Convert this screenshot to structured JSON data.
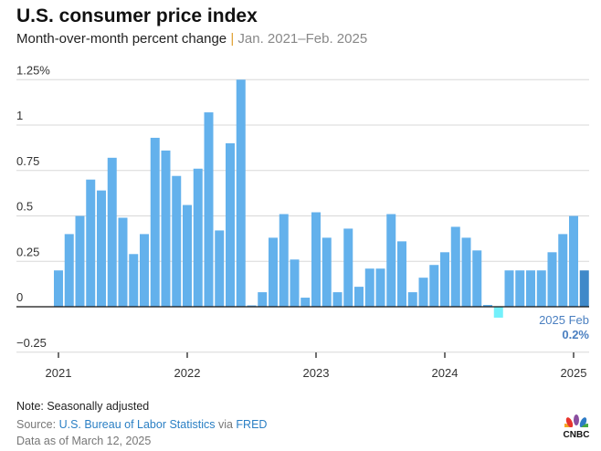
{
  "title": "U.S. consumer price index",
  "subtitle": "Month-over-month percent change",
  "subtitle_separator": "|",
  "subtitle_range": "Jan. 2021–Feb. 2025",
  "chart_data": {
    "type": "bar",
    "title": "U.S. consumer price index",
    "ylabel": "",
    "xlabel": "",
    "ylim": [
      -0.25,
      1.25
    ],
    "y_ticks": [
      -0.25,
      0,
      0.25,
      0.5,
      0.75,
      1,
      1.25
    ],
    "y_tick_labels": [
      "−0.25",
      "0",
      "0.25",
      "0.5",
      "0.75",
      "1",
      "1.25%"
    ],
    "x_tick_labels": [
      "2021",
      "2022",
      "2023",
      "2024",
      "2025"
    ],
    "grid": true,
    "start": "2021-01",
    "categories": [
      "2021-01",
      "2021-02",
      "2021-03",
      "2021-04",
      "2021-05",
      "2021-06",
      "2021-07",
      "2021-08",
      "2021-09",
      "2021-10",
      "2021-11",
      "2021-12",
      "2022-01",
      "2022-02",
      "2022-03",
      "2022-04",
      "2022-05",
      "2022-06",
      "2022-07",
      "2022-08",
      "2022-09",
      "2022-10",
      "2022-11",
      "2022-12",
      "2023-01",
      "2023-02",
      "2023-03",
      "2023-04",
      "2023-05",
      "2023-06",
      "2023-07",
      "2023-08",
      "2023-09",
      "2023-10",
      "2023-11",
      "2023-12",
      "2024-01",
      "2024-02",
      "2024-03",
      "2024-04",
      "2024-05",
      "2024-06",
      "2024-07",
      "2024-08",
      "2024-09",
      "2024-10",
      "2024-11",
      "2024-12",
      "2025-01",
      "2025-02"
    ],
    "values": [
      0.2,
      0.4,
      0.5,
      0.7,
      0.64,
      0.82,
      0.49,
      0.29,
      0.4,
      0.93,
      0.86,
      0.72,
      0.56,
      0.76,
      1.07,
      0.42,
      0.9,
      1.25,
      0.0,
      0.08,
      0.38,
      0.51,
      0.26,
      0.05,
      0.52,
      0.38,
      0.08,
      0.43,
      0.11,
      0.21,
      0.21,
      0.51,
      0.36,
      0.08,
      0.16,
      0.23,
      0.3,
      0.44,
      0.38,
      0.31,
      0.01,
      -0.06,
      0.2,
      0.2,
      0.2,
      0.2,
      0.3,
      0.4,
      0.5,
      0.2
    ],
    "colors": {
      "bar": "#63b1ec",
      "negative": "#73f0fb",
      "highlight": "#3f89c9"
    },
    "annotation": {
      "label": "2025 Feb",
      "value": "0.2%"
    }
  },
  "footer": {
    "note": "Note: Seasonally adjusted",
    "source_prefix": "Source: ",
    "source_link": "U.S. Bureau of Labor Statistics",
    "source_mid": " via ",
    "source_link2": "FRED",
    "data_as_of": "Data as of March 12, 2025"
  },
  "logo": "CNBC"
}
